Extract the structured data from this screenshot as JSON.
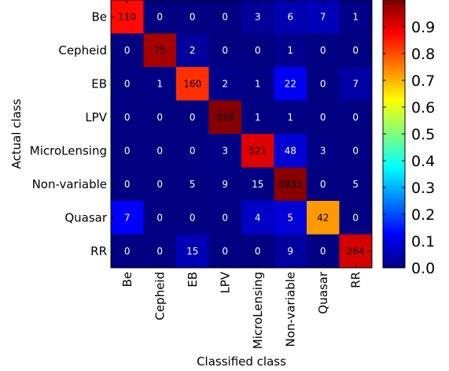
{
  "chart_data": {
    "type": "heatmap",
    "title": "",
    "xlabel": "Classified class",
    "ylabel": "Actual class",
    "x_categories": [
      "Be",
      "Cepheid",
      "EB",
      "LPV",
      "MicroLensing",
      "Non-variable",
      "Quasar",
      "RR"
    ],
    "y_categories": [
      "Be",
      "Cepheid",
      "EB",
      "LPV",
      "MicroLensing",
      "Non-variable",
      "Quasar",
      "RR"
    ],
    "values": [
      [
        110,
        0,
        0,
        0,
        3,
        6,
        7,
        1
      ],
      [
        0,
        75,
        2,
        0,
        0,
        1,
        0,
        0
      ],
      [
        0,
        1,
        160,
        2,
        1,
        22,
        0,
        7
      ],
      [
        0,
        0,
        0,
        359,
        1,
        1,
        0,
        0
      ],
      [
        0,
        0,
        0,
        3,
        521,
        48,
        3,
        0
      ],
      [
        0,
        0,
        5,
        9,
        15,
        3935,
        0,
        5
      ],
      [
        7,
        0,
        0,
        0,
        4,
        5,
        42,
        0
      ],
      [
        0,
        0,
        15,
        0,
        0,
        9,
        0,
        264
      ]
    ],
    "colorbar": {
      "min": 0.0,
      "max": 1.0,
      "colormap": "jet",
      "ticks": [
        0.0,
        0.1,
        0.2,
        0.3,
        0.4,
        0.5,
        0.6,
        0.7,
        0.8,
        0.9
      ],
      "tick_labels": [
        "0.0",
        "0.1",
        "0.2",
        "0.3",
        "0.4",
        "0.5",
        "0.6",
        "0.7",
        "0.8",
        "0.9"
      ]
    }
  }
}
